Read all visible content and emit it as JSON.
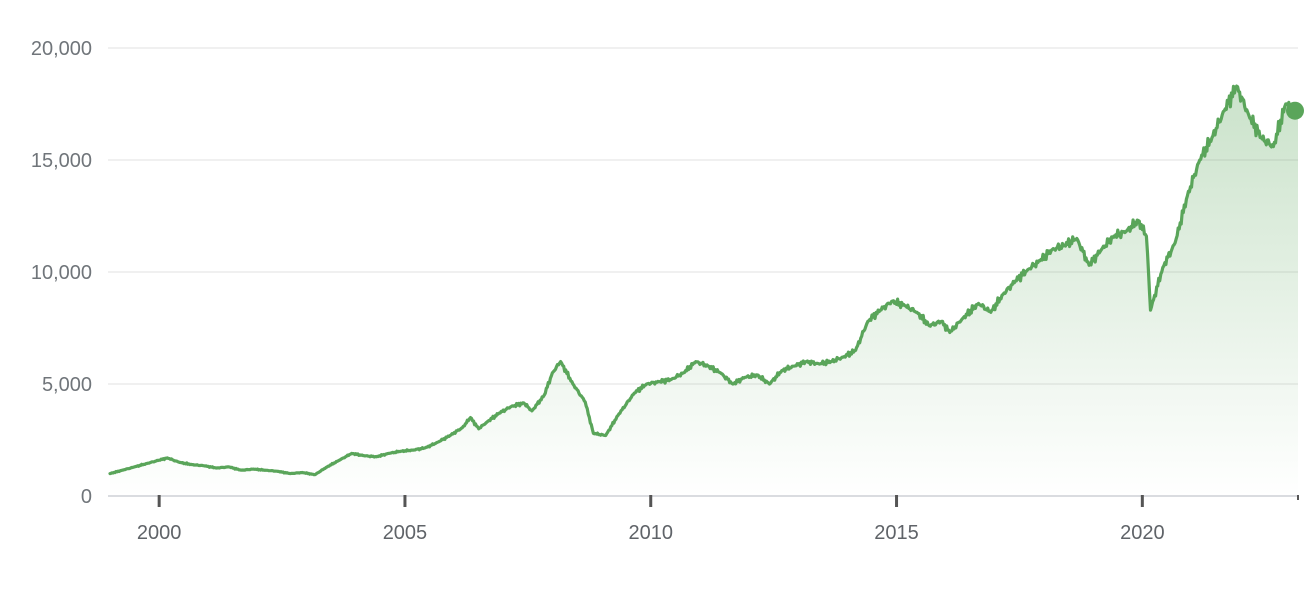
{
  "chart_data": {
    "type": "area",
    "title": "",
    "xlabel": "",
    "ylabel": "",
    "ylim": [
      0,
      20000
    ],
    "xlim": [
      "1999-01",
      "2023-03"
    ],
    "yticks": [
      0,
      5000,
      10000,
      15000,
      20000
    ],
    "ytick_labels": [
      "0",
      "5,000",
      "10,000",
      "15,000",
      "20,000"
    ],
    "xticks": [
      "2000",
      "2005",
      "2010",
      "2015",
      "2020"
    ],
    "xtick_labels": [
      "2000",
      "2005",
      "2010",
      "2015",
      "2020"
    ],
    "grid": true,
    "legend": "none",
    "colors": {
      "line": "#5aa55a",
      "fill": "#5aa55a",
      "grid": "#ebebeb",
      "axis": "#dadce0",
      "tick": "#555555",
      "label": "#70757a"
    },
    "series": [
      {
        "x": [
          "1999-01",
          "1999-04",
          "1999-07",
          "1999-10",
          "2000-01",
          "2000-03",
          "2000-06",
          "2000-09",
          "2000-12",
          "2001-03",
          "2001-06",
          "2001-09",
          "2001-12",
          "2002-03",
          "2002-06",
          "2002-09",
          "2002-12",
          "2003-03",
          "2003-06",
          "2003-09",
          "2003-12",
          "2004-03",
          "2004-06",
          "2004-09",
          "2004-12",
          "2005-03",
          "2005-06",
          "2005-09",
          "2005-12",
          "2006-03",
          "2006-05",
          "2006-07",
          "2006-09",
          "2006-12",
          "2007-03",
          "2007-06",
          "2007-08",
          "2007-11",
          "2008-01",
          "2008-03",
          "2008-06",
          "2008-09",
          "2008-11",
          "2009-02",
          "2009-05",
          "2009-09",
          "2009-12",
          "2010-03",
          "2010-06",
          "2010-09",
          "2010-12",
          "2011-03",
          "2011-06",
          "2011-09",
          "2011-12",
          "2012-03",
          "2012-06",
          "2012-09",
          "2012-12",
          "2013-03",
          "2013-06",
          "2013-09",
          "2013-12",
          "2014-03",
          "2014-06",
          "2014-09",
          "2014-12",
          "2015-03",
          "2015-06",
          "2015-09",
          "2015-12",
          "2016-02",
          "2016-05",
          "2016-09",
          "2016-12",
          "2017-03",
          "2017-06",
          "2017-09",
          "2017-12",
          "2018-03",
          "2018-06",
          "2018-09",
          "2018-12",
          "2019-03",
          "2019-06",
          "2019-09",
          "2019-12",
          "2020-02",
          "2020-03",
          "2020-06",
          "2020-09",
          "2020-12",
          "2021-03",
          "2021-06",
          "2021-09",
          "2021-12",
          "2022-03",
          "2022-06",
          "2022-09",
          "2022-12",
          "2023-03"
        ],
        "values": [
          1000,
          1150,
          1300,
          1450,
          1600,
          1700,
          1500,
          1400,
          1350,
          1250,
          1300,
          1150,
          1200,
          1150,
          1100,
          1000,
          1050,
          950,
          1300,
          1600,
          1900,
          1800,
          1750,
          1900,
          2000,
          2050,
          2150,
          2400,
          2700,
          3050,
          3500,
          3000,
          3300,
          3700,
          4000,
          4150,
          3800,
          4500,
          5500,
          6000,
          5000,
          4200,
          2800,
          2700,
          3600,
          4600,
          5000,
          5100,
          5200,
          5500,
          6000,
          5800,
          5500,
          5000,
          5300,
          5400,
          5000,
          5600,
          5800,
          6000,
          5900,
          6000,
          6200,
          6500,
          7800,
          8300,
          8700,
          8500,
          8200,
          7600,
          7800,
          7300,
          7900,
          8600,
          8200,
          9000,
          9600,
          10100,
          10500,
          11000,
          11200,
          11500,
          10300,
          11000,
          11600,
          11800,
          12300,
          11600,
          8300,
          10200,
          11300,
          13400,
          15000,
          16000,
          17200,
          18300,
          17000,
          16000,
          15600,
          17500,
          17200
        ]
      }
    ]
  }
}
